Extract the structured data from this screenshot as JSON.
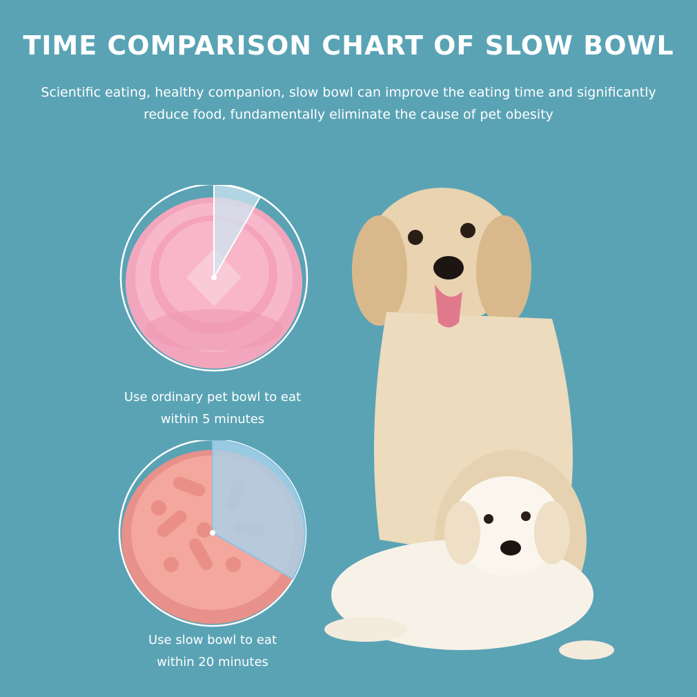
{
  "header": {
    "title": "TIME COMPARISON CHART OF SLOW BOWL",
    "subtitle_line1": "Scientific eating, healthy companion, slow bowl can improve the eating time and significantly",
    "subtitle_line2": "reduce food, fundamentally eliminate the cause of pet obesity"
  },
  "ordinary_bowl": {
    "caption_line1": "Use ordinary pet bowl to eat",
    "caption_line2": "within 5 minutes",
    "minutes": 5,
    "highlight_fraction": 0.083,
    "bowl_color": "#f3a0b8",
    "icon": "pink-pet-bowl"
  },
  "slow_bowl": {
    "caption_line1": "Use slow bowl to eat",
    "caption_line2": "within 20 minutes",
    "minutes": 20,
    "highlight_fraction": 0.333,
    "bowl_color": "#f0a297",
    "icon": "bone-pattern-slow-bowl"
  },
  "photo": {
    "subject": "adult-golden-retriever-and-puppy",
    "background_color": "#5aa3b5"
  }
}
